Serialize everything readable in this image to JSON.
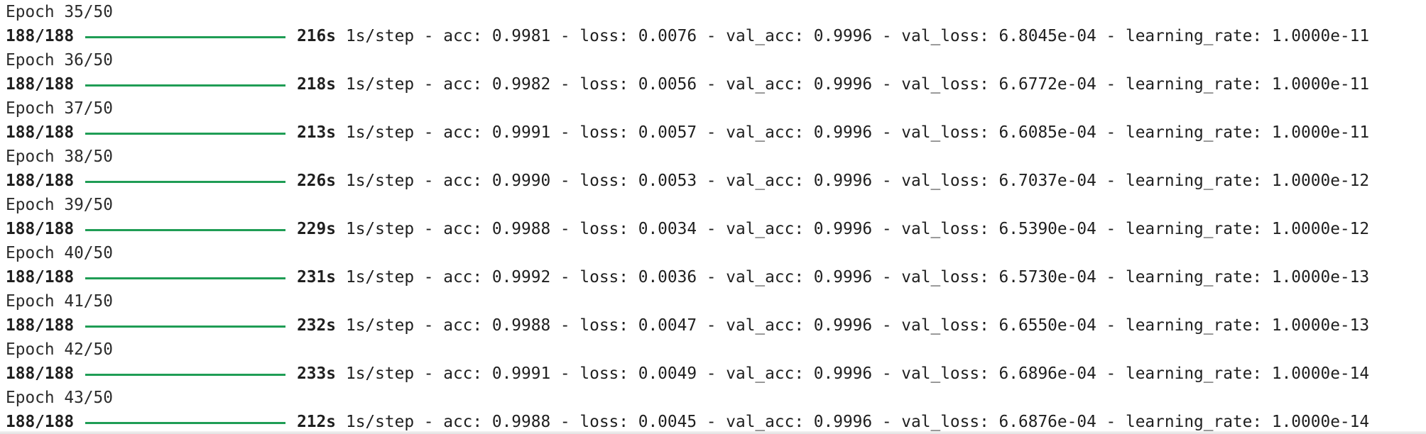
{
  "colors": {
    "progress_bar": "#1f9d55",
    "text": "#1f1f1f",
    "background": "#ffffff"
  },
  "epochs": [
    {
      "header": "Epoch 35/50",
      "steps": "188/188",
      "time": "216s",
      "metrics": "1s/step - acc: 0.9981 - loss: 0.0076 - val_acc: 0.9996 - val_loss: 6.8045e-04 - learning_rate: 1.0000e-11",
      "progress": 1.0
    },
    {
      "header": "Epoch 36/50",
      "steps": "188/188",
      "time": "218s",
      "metrics": "1s/step - acc: 0.9982 - loss: 0.0056 - val_acc: 0.9996 - val_loss: 6.6772e-04 - learning_rate: 1.0000e-11",
      "progress": 1.0
    },
    {
      "header": "Epoch 37/50",
      "steps": "188/188",
      "time": "213s",
      "metrics": "1s/step - acc: 0.9991 - loss: 0.0057 - val_acc: 0.9996 - val_loss: 6.6085e-04 - learning_rate: 1.0000e-11",
      "progress": 1.0
    },
    {
      "header": "Epoch 38/50",
      "steps": "188/188",
      "time": "226s",
      "metrics": "1s/step - acc: 0.9990 - loss: 0.0053 - val_acc: 0.9996 - val_loss: 6.7037e-04 - learning_rate: 1.0000e-12",
      "progress": 1.0
    },
    {
      "header": "Epoch 39/50",
      "steps": "188/188",
      "time": "229s",
      "metrics": "1s/step - acc: 0.9988 - loss: 0.0034 - val_acc: 0.9996 - val_loss: 6.5390e-04 - learning_rate: 1.0000e-12",
      "progress": 1.0
    },
    {
      "header": "Epoch 40/50",
      "steps": "188/188",
      "time": "231s",
      "metrics": "1s/step - acc: 0.9992 - loss: 0.0036 - val_acc: 0.9996 - val_loss: 6.5730e-04 - learning_rate: 1.0000e-13",
      "progress": 1.0
    },
    {
      "header": "Epoch 41/50",
      "steps": "188/188",
      "time": "232s",
      "metrics": "1s/step - acc: 0.9988 - loss: 0.0047 - val_acc: 0.9996 - val_loss: 6.6550e-04 - learning_rate: 1.0000e-13",
      "progress": 1.0
    },
    {
      "header": "Epoch 42/50",
      "steps": "188/188",
      "time": "233s",
      "metrics": "1s/step - acc: 0.9991 - loss: 0.0049 - val_acc: 0.9996 - val_loss: 6.6896e-04 - learning_rate: 1.0000e-14",
      "progress": 1.0
    },
    {
      "header": "Epoch 43/50",
      "steps": "188/188",
      "time": "212s",
      "metrics": "1s/step - acc: 0.9988 - loss: 0.0045 - val_acc: 0.9996 - val_loss: 6.6876e-04 - learning_rate: 1.0000e-14",
      "progress": 1.0
    }
  ]
}
